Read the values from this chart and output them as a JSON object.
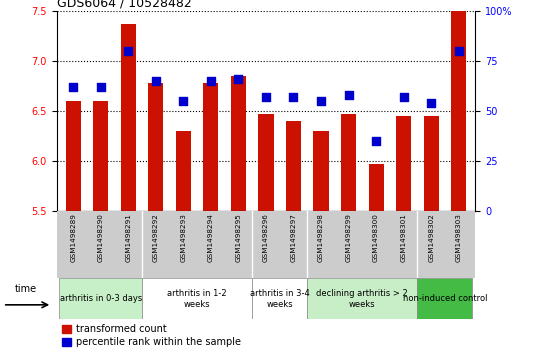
{
  "title": "GDS6064 / 10528482",
  "samples": [
    "GSM1498289",
    "GSM1498290",
    "GSM1498291",
    "GSM1498292",
    "GSM1498293",
    "GSM1498294",
    "GSM1498295",
    "GSM1498296",
    "GSM1498297",
    "GSM1498298",
    "GSM1498299",
    "GSM1498300",
    "GSM1498301",
    "GSM1498302",
    "GSM1498303"
  ],
  "transformed_count": [
    6.6,
    6.6,
    7.37,
    6.78,
    6.3,
    6.78,
    6.85,
    6.47,
    6.4,
    6.3,
    6.47,
    5.97,
    6.45,
    6.45,
    7.5
  ],
  "percentile_rank": [
    62,
    62,
    80,
    65,
    55,
    65,
    66,
    57,
    57,
    55,
    58,
    35,
    57,
    54,
    80
  ],
  "ylim_left": [
    5.5,
    7.5
  ],
  "ylim_right": [
    0,
    100
  ],
  "yticks_left": [
    5.5,
    6.0,
    6.5,
    7.0,
    7.5
  ],
  "yticks_right": [
    0,
    25,
    50,
    75,
    100
  ],
  "bar_color": "#cc1100",
  "dot_color": "#0000cc",
  "groups": [
    {
      "label": "arthritis in 0-3 days",
      "start": 0,
      "end": 3,
      "color": "#c8f0c8"
    },
    {
      "label": "arthritis in 1-2\nweeks",
      "start": 3,
      "end": 7,
      "color": "#ffffff"
    },
    {
      "label": "arthritis in 3-4\nweeks",
      "start": 7,
      "end": 9,
      "color": "#ffffff"
    },
    {
      "label": "declining arthritis > 2\nweeks",
      "start": 9,
      "end": 13,
      "color": "#c8eec8"
    },
    {
      "label": "non-induced control",
      "start": 13,
      "end": 15,
      "color": "#44bb44"
    }
  ],
  "legend_red": "transformed count",
  "legend_blue": "percentile rank within the sample",
  "dot_size": 35,
  "bar_width": 0.55
}
